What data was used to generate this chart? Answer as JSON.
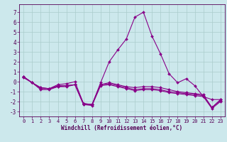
{
  "xlabel": "Windchill (Refroidissement éolien,°C)",
  "background_color": "#cce8ec",
  "grid_color": "#aacccc",
  "line_color": "#880088",
  "xlim": [
    -0.5,
    23.5
  ],
  "ylim": [
    -3.5,
    7.8
  ],
  "xticks": [
    0,
    1,
    2,
    3,
    4,
    5,
    6,
    7,
    8,
    9,
    10,
    11,
    12,
    13,
    14,
    15,
    16,
    17,
    18,
    19,
    20,
    21,
    22,
    23
  ],
  "yticks": [
    -3,
    -2,
    -1,
    0,
    1,
    2,
    3,
    4,
    5,
    6,
    7
  ],
  "series": [
    [
      0.5,
      -0.1,
      -0.6,
      -0.7,
      -0.3,
      -0.2,
      0.0,
      -2.2,
      -2.3,
      -0.1,
      2.0,
      3.2,
      4.3,
      6.5,
      7.0,
      4.6,
      2.8,
      0.8,
      -0.1,
      0.3,
      -0.4,
      -1.5,
      -1.8,
      -1.8
    ],
    [
      0.5,
      -0.1,
      -0.6,
      -0.7,
      -0.4,
      -0.4,
      -0.3,
      -2.2,
      -2.3,
      -0.3,
      -0.1,
      -0.3,
      -0.5,
      -0.6,
      -0.5,
      -0.5,
      -0.6,
      -0.8,
      -1.0,
      -1.1,
      -1.2,
      -1.3,
      -2.6,
      -1.8
    ],
    [
      0.5,
      -0.1,
      -0.7,
      -0.7,
      -0.5,
      -0.4,
      -0.3,
      -2.3,
      -2.3,
      -0.3,
      -0.2,
      -0.4,
      -0.6,
      -0.8,
      -0.7,
      -0.7,
      -0.8,
      -1.0,
      -1.1,
      -1.2,
      -1.3,
      -1.4,
      -2.6,
      -1.9
    ],
    [
      0.4,
      -0.1,
      -0.8,
      -0.8,
      -0.5,
      -0.5,
      -0.3,
      -2.3,
      -2.4,
      -0.4,
      -0.3,
      -0.5,
      -0.7,
      -0.9,
      -0.8,
      -0.8,
      -0.9,
      -1.1,
      -1.2,
      -1.3,
      -1.4,
      -1.5,
      -2.7,
      -2.0
    ]
  ]
}
